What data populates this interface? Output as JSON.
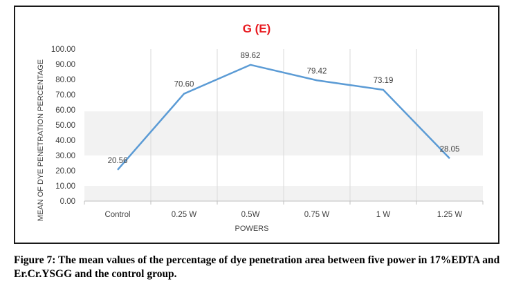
{
  "chart_data": {
    "type": "line",
    "title": "G (E)",
    "xlabel": "POWERS",
    "ylabel": "MEAN OF DYE PENETRATION PERCENTAGE",
    "categories": [
      "Control",
      "0.25 W",
      "0.5W",
      "0.75 W",
      "1 W",
      "1.25 W"
    ],
    "values": [
      20.56,
      70.6,
      89.62,
      79.42,
      73.19,
      28.05
    ],
    "value_labels": [
      "20.56",
      "70.60",
      "89.62",
      "79.42",
      "73.19",
      "28.05"
    ],
    "ylim": [
      0,
      100
    ],
    "yticks": [
      "0.00",
      "10.00",
      "20.00",
      "30.00",
      "40.00",
      "50.00",
      "60.00",
      "70.00",
      "80.00",
      "90.00",
      "100.00"
    ],
    "grid": "vertical",
    "legend": "none",
    "colors": {
      "line": "#5b9bd5",
      "title": "#e8191f",
      "band": "#f2f2f2",
      "gridline": "#d9d9d9",
      "axis": "#bfbfbf"
    }
  },
  "caption": "Figure 7: The mean values of the percentage of dye penetration area between five power in 17%EDTA and Er.Cr.YSGG and the control group."
}
